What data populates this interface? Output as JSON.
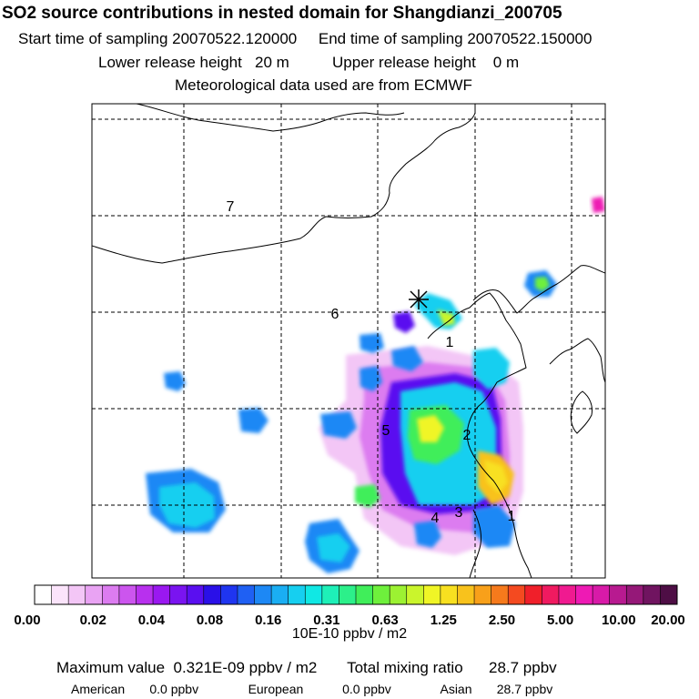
{
  "header": {
    "title": "SO2 source contributions in nested domain for Shangdianzi_200705",
    "sampling_start_label": "Start time of sampling",
    "sampling_start": "20070522.120000",
    "sampling_end_label": "End time of sampling",
    "sampling_end": "20070522.150000",
    "lower_release_label": "Lower release height",
    "lower_release": "20 m",
    "upper_release_label": "Upper release height",
    "upper_release": "0 m",
    "met_label": "Meteorological data used are from ECMWF"
  },
  "chart_data": {
    "type": "heatmap",
    "region_labels": [
      "1",
      "2",
      "3",
      "4",
      "5",
      "6",
      "7",
      "1"
    ],
    "colorbar": {
      "tick_labels": [
        "0.00",
        "0.02",
        "0.04",
        "0.08",
        "0.16",
        "0.31",
        "0.63",
        "1.25",
        "2.50",
        "5.00",
        "10.00",
        "20.00"
      ],
      "colors": [
        "#ffffff",
        "#fbe4fb",
        "#f3c6f6",
        "#e9a3f3",
        "#dc7cf0",
        "#cc55ee",
        "#b830ee",
        "#9a18f0",
        "#7a14f0",
        "#5a0ff0",
        "#2a10e8",
        "#1f35f0",
        "#1f60f3",
        "#1d88f5",
        "#1aaef3",
        "#16cff0",
        "#10e8e4",
        "#1ef0b8",
        "#2cf08a",
        "#40ee5a",
        "#6ef03c",
        "#9cf232",
        "#caf52c",
        "#f0f526",
        "#f8e020",
        "#f8c21c",
        "#f8a01a",
        "#f67a1c",
        "#f44a20",
        "#f01f2a",
        "#f01a60",
        "#f01a90",
        "#ee1ab4",
        "#d81aa8",
        "#b81a90",
        "#951878",
        "#701460",
        "#4e0e45"
      ],
      "unit": "10E-10 ppbv / m2"
    }
  },
  "footer": {
    "max_label": "Maximum value",
    "max_value": "0.321E-09 ppbv / m2",
    "total_label": "Total mixing ratio",
    "total_value": "28.7 ppbv",
    "american_label": "American",
    "american_value": "0.0 ppbv",
    "european_label": "European",
    "european_value": "0.0 ppbv",
    "asian_label": "Asian",
    "asian_value": "28.7 ppbv"
  }
}
